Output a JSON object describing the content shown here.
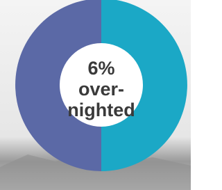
{
  "chart_data": {
    "type": "donut",
    "values": [
      50,
      50
    ],
    "colors": [
      "#1ba8c6",
      "#5b69a6"
    ],
    "center_label": [
      "6%",
      "over-",
      "nighted"
    ]
  }
}
